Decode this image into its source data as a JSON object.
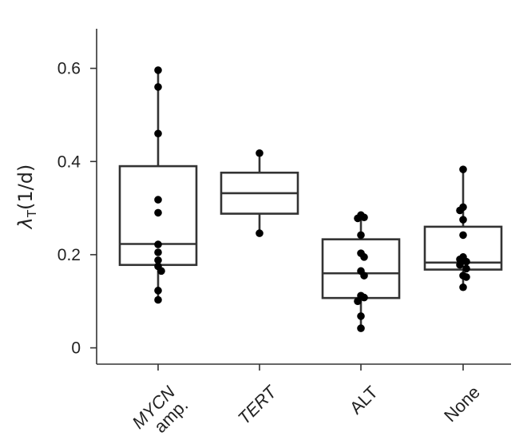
{
  "chart_data": {
    "type": "box",
    "ylabel": {
      "symbol": "λ",
      "subscript": "T",
      "units": "(1/d)"
    },
    "ylim": [
      -0.035,
      0.685
    ],
    "yticks": [
      0,
      0.2,
      0.4,
      0.6
    ],
    "ytick_labels": [
      "0",
      "0.2",
      "0.4",
      "0.6"
    ],
    "categories": [
      {
        "label": "MYCN amp.",
        "lines": [
          "MYCN",
          "amp."
        ],
        "italic": [
          true,
          false
        ]
      },
      {
        "label": "TERT",
        "lines": [
          "TERT"
        ],
        "italic": [
          true
        ]
      },
      {
        "label": "ALT",
        "lines": [
          "ALT"
        ],
        "italic": [
          false
        ]
      },
      {
        "label": "None",
        "lines": [
          "None"
        ],
        "italic": [
          false
        ]
      }
    ],
    "boxes": [
      {
        "q1": 0.178,
        "median": 0.223,
        "q3": 0.39,
        "whisker_low": 0.103,
        "whisker_high": 0.596,
        "points": [
          0.596,
          0.56,
          0.46,
          0.318,
          0.29,
          0.222,
          0.205,
          0.188,
          0.175,
          0.165,
          0.123,
          0.103
        ]
      },
      {
        "q1": 0.288,
        "median": 0.332,
        "q3": 0.376,
        "whisker_low": 0.246,
        "whisker_high": 0.418,
        "points": [
          0.418,
          0.246
        ]
      },
      {
        "q1": 0.107,
        "median": 0.16,
        "q3": 0.233,
        "whisker_low": 0.042,
        "whisker_high": 0.285,
        "points": [
          0.285,
          0.28,
          0.278,
          0.242,
          0.203,
          0.195,
          0.165,
          0.155,
          0.112,
          0.108,
          0.1,
          0.068,
          0.042
        ]
      },
      {
        "q1": 0.168,
        "median": 0.183,
        "q3": 0.26,
        "whisker_low": 0.13,
        "whisker_high": 0.383,
        "points": [
          0.383,
          0.302,
          0.295,
          0.275,
          0.242,
          0.195,
          0.19,
          0.185,
          0.178,
          0.17,
          0.155,
          0.152,
          0.13
        ]
      }
    ],
    "grid": false,
    "legend": "none"
  }
}
